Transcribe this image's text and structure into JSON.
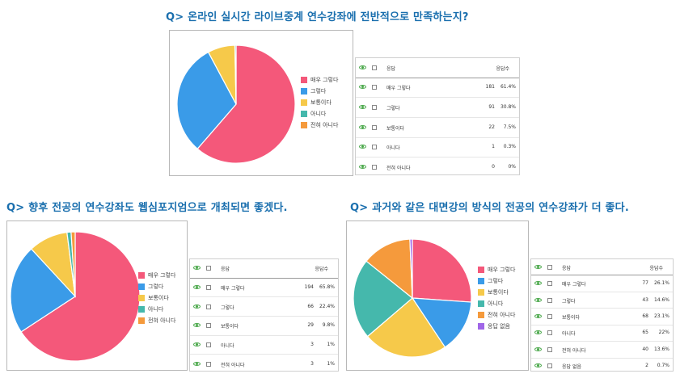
{
  "charts": [
    {
      "question": "Q> 온라인 실시간 라이브중계 연수강좌에 전반적으로 만족하는지?",
      "header": {
        "label": "응답",
        "count": "응답수"
      },
      "legend_items": [
        "매우 그렇다",
        "그렇다",
        "보통이다",
        "아니다",
        "전혀 아니다"
      ],
      "rows": [
        {
          "label": "매우 그렇다",
          "count": "181",
          "pct": "61.4%"
        },
        {
          "label": "그렇다",
          "count": "91",
          "pct": "30.8%"
        },
        {
          "label": "보통이다",
          "count": "22",
          "pct": "7.5%"
        },
        {
          "label": "아니다",
          "count": "1",
          "pct": "0.3%"
        },
        {
          "label": "전혀 아니다",
          "count": "0",
          "pct": "0%"
        }
      ]
    },
    {
      "question": "Q> 향후 전공의 연수강좌도 웹심포지엄으로 개최되면 좋겠다.",
      "header": {
        "label": "응답",
        "count": "응답수"
      },
      "legend_items": [
        "매우 그렇다",
        "그렇다",
        "보통이다",
        "아니다",
        "전혀 아니다"
      ],
      "rows": [
        {
          "label": "매우 그렇다",
          "count": "194",
          "pct": "65.8%"
        },
        {
          "label": "그렇다",
          "count": "66",
          "pct": "22.4%"
        },
        {
          "label": "보통이다",
          "count": "29",
          "pct": "9.8%"
        },
        {
          "label": "아니다",
          "count": "3",
          "pct": "1%"
        },
        {
          "label": "전혀 아니다",
          "count": "3",
          "pct": "1%"
        }
      ]
    },
    {
      "question": "Q> 과거와 같은 대면강의 방식의 전공의 연수강좌가 더 좋다.",
      "header": {
        "label": "응답",
        "count": "응답수"
      },
      "legend_items": [
        "매우 그렇다",
        "그렇다",
        "보통이다",
        "아니다",
        "전혀 아니다",
        "응답 없음"
      ],
      "rows": [
        {
          "label": "매우 그렇다",
          "count": "77",
          "pct": "26.1%"
        },
        {
          "label": "그렇다",
          "count": "43",
          "pct": "14.6%"
        },
        {
          "label": "보통이다",
          "count": "68",
          "pct": "23.1%"
        },
        {
          "label": "아니다",
          "count": "65",
          "pct": "22%"
        },
        {
          "label": "전혀 아니다",
          "count": "40",
          "pct": "13.6%"
        },
        {
          "label": "응답 없음",
          "count": "2",
          "pct": "0.7%"
        }
      ]
    }
  ],
  "chart_data": [
    {
      "type": "pie",
      "categories": [
        "매우 그렇다",
        "그렇다",
        "보통이다",
        "아니다",
        "전혀 아니다"
      ],
      "values": [
        181,
        91,
        22,
        1,
        0
      ],
      "colors": [
        "#f4587a",
        "#3a9be8",
        "#f6c94a",
        "#45b8ac",
        "#f59a3c"
      ],
      "legend": "right"
    },
    {
      "type": "pie",
      "categories": [
        "매우 그렇다",
        "그렇다",
        "보통이다",
        "아니다",
        "전혀 아니다"
      ],
      "values": [
        194,
        66,
        29,
        3,
        3
      ],
      "colors": [
        "#f4587a",
        "#3a9be8",
        "#f6c94a",
        "#45b8ac",
        "#f59a3c"
      ],
      "legend": "right"
    },
    {
      "type": "pie",
      "categories": [
        "매우 그렇다",
        "그렇다",
        "보통이다",
        "아니다",
        "전혀 아니다",
        "응답 없음"
      ],
      "values": [
        77,
        43,
        68,
        65,
        40,
        2
      ],
      "colors": [
        "#f4587a",
        "#3a9be8",
        "#f6c94a",
        "#45b8ac",
        "#f59a3c",
        "#a066e8"
      ],
      "legend": "right"
    }
  ]
}
